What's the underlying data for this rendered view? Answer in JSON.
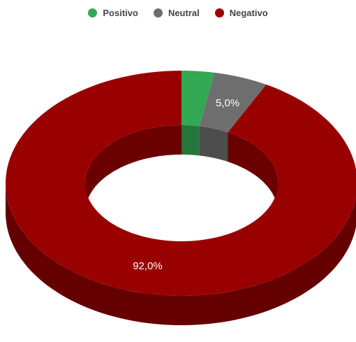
{
  "chart_data": {
    "type": "pie",
    "variant": "3d-donut",
    "legend_position": "top",
    "categories": [
      "Positivo",
      "Neutral",
      "Negativo"
    ],
    "values": [
      3.0,
      5.0,
      92.0
    ],
    "data_labels": [
      "",
      "5,0%",
      "92,0%"
    ],
    "colors": [
      "#33a853",
      "#6e6e6e",
      "#990000"
    ],
    "start_angle_deg": 0,
    "direction": "clockwise"
  }
}
